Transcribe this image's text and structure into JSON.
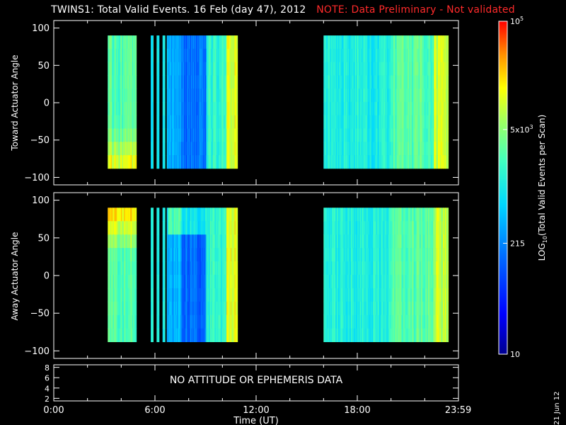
{
  "header": {
    "title": "TWINS1: Total Valid Events. 16 Feb (day  47), 2012",
    "note": "NOTE: Data Preliminary - Not validated",
    "note_color": "#ff2a2a"
  },
  "footer": {
    "date_stamp": "21 Jun 12"
  },
  "chart_data": [
    {
      "type": "heatmap",
      "panel": "top",
      "ylabel": "Toward Actuator Angle",
      "ylim": [
        -110,
        110
      ],
      "yticks": [
        100,
        50,
        0,
        -50,
        -100
      ],
      "xlim": [
        0,
        24
      ],
      "data_y_range": [
        -88,
        90
      ],
      "data_intervals_ut": [
        [
          3.2,
          4.9
        ],
        [
          5.75,
          5.9
        ],
        [
          6.1,
          6.25
        ],
        [
          6.45,
          6.6
        ],
        [
          6.7,
          10.9
        ],
        [
          16.0,
          23.4
        ]
      ],
      "colorscale": "log",
      "value_range": [
        10,
        100000
      ]
    },
    {
      "type": "heatmap",
      "panel": "middle",
      "ylabel": "Away Actuator Angle",
      "ylim": [
        -110,
        110
      ],
      "yticks": [
        100,
        50,
        0,
        -50,
        -100
      ],
      "xlim": [
        0,
        24
      ],
      "data_y_range": [
        -88,
        90
      ],
      "data_intervals_ut": [
        [
          3.2,
          4.9
        ],
        [
          5.75,
          5.9
        ],
        [
          6.1,
          6.25
        ],
        [
          6.45,
          6.6
        ],
        [
          6.7,
          10.9
        ],
        [
          16.0,
          23.4
        ]
      ],
      "colorscale": "log",
      "value_range": [
        10,
        100000
      ]
    },
    {
      "type": "line",
      "panel": "bottom",
      "message": "NO ATTITUDE OR EPHEMERIS DATA",
      "ylim": [
        1.5,
        8.5
      ],
      "yticks": [
        8,
        6,
        4,
        2
      ],
      "xlabel": "Time (UT)",
      "xticks": [
        {
          "value": 0,
          "label": "0:00"
        },
        {
          "value": 6,
          "label": "6:00"
        },
        {
          "value": 12,
          "label": "12:00"
        },
        {
          "value": 18,
          "label": "18:00"
        },
        {
          "value": 23.983,
          "label": "23:59"
        }
      ]
    }
  ],
  "colorbar": {
    "label": "LOG10(Total Valid Events per Scan)",
    "label_prefix": "LOG",
    "label_sub": "10",
    "label_rest": "(Total Valid Events per Scan)",
    "scale": "log",
    "range": [
      10,
      100000
    ],
    "ticks": [
      {
        "value": 100000,
        "base": "10",
        "exp": "5"
      },
      {
        "value": 5000,
        "base": "5x10",
        "exp": "3"
      },
      {
        "value": 215,
        "base": "215",
        "exp": ""
      },
      {
        "value": 10,
        "base": "10",
        "exp": ""
      }
    ]
  }
}
